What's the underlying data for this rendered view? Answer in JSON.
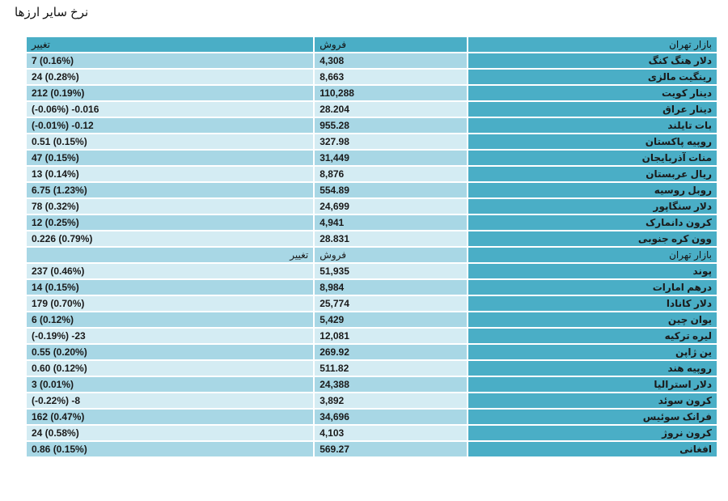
{
  "title": "نرخ سایر ارزها",
  "header": {
    "name": "بازار تهران",
    "sell": "فروش",
    "change": "تغییر"
  },
  "rows_a": [
    {
      "name": "دلار هنگ کنگ",
      "sell": "4,308",
      "change": "7 (0.16%)"
    },
    {
      "name": "رینگیت مالزی",
      "sell": "8,663",
      "change": "24 (0.28%)"
    },
    {
      "name": "دینار کویت",
      "sell": "110,288",
      "change": "212 (0.19%)"
    },
    {
      "name": "دینار عراق",
      "sell": "28.204",
      "change": "(-0.06%) -0.016"
    },
    {
      "name": "بات تایلند",
      "sell": "955.28",
      "change": "(-0.01%) -0.12"
    },
    {
      "name": "روپیه پاکستان",
      "sell": "327.98",
      "change": "0.51 (0.15%)"
    },
    {
      "name": "منات آذربایجان",
      "sell": "31,449",
      "change": "47 (0.15%)"
    },
    {
      "name": "ریال عربستان",
      "sell": "8,876",
      "change": "13 (0.14%)"
    },
    {
      "name": "روبل روسیه",
      "sell": "554.89",
      "change": "6.75 (1.23%)"
    },
    {
      "name": "دلار سنگاپور",
      "sell": "24,699",
      "change": "78 (0.32%)"
    },
    {
      "name": "کرون دانمارک",
      "sell": "4,941",
      "change": "12 (0.25%)"
    },
    {
      "name": "وون کره جنوبی",
      "sell": "28.831",
      "change": "0.226 (0.79%)"
    }
  ],
  "rows_b": [
    {
      "name": "پوند",
      "sell": "51,935",
      "change": "237 (0.46%)"
    },
    {
      "name": "درهم امارات",
      "sell": "8,984",
      "change": "14 (0.15%)"
    },
    {
      "name": "دلار کانادا",
      "sell": "25,774",
      "change": "179 (0.70%)"
    },
    {
      "name": "یوان چین",
      "sell": "5,429",
      "change": "6 (0.12%)"
    },
    {
      "name": "لیره ترکیه",
      "sell": "12,081",
      "change": "(-0.19%) -23"
    },
    {
      "name": "ین ژاپن",
      "sell": "269.92",
      "change": "0.55 (0.20%)"
    },
    {
      "name": "روپیه هند",
      "sell": "511.82",
      "change": "0.60 (0.12%)"
    },
    {
      "name": "دلار استرالیا",
      "sell": "24,388",
      "change": "3 (0.01%)"
    },
    {
      "name": "کرون سوئد",
      "sell": "3,892",
      "change": "(-0.22%) -8"
    },
    {
      "name": "فرانک سوئیس",
      "sell": "34,696",
      "change": "162 (0.47%)"
    },
    {
      "name": "کرون نروژ",
      "sell": "4,103",
      "change": "24 (0.58%)"
    },
    {
      "name": "افغانی",
      "sell": "569.27",
      "change": "0.86 (0.15%)"
    }
  ],
  "colors": {
    "header": "#4aaec6",
    "row_dark": "#a8d7e5",
    "row_light": "#d4ecf3"
  }
}
